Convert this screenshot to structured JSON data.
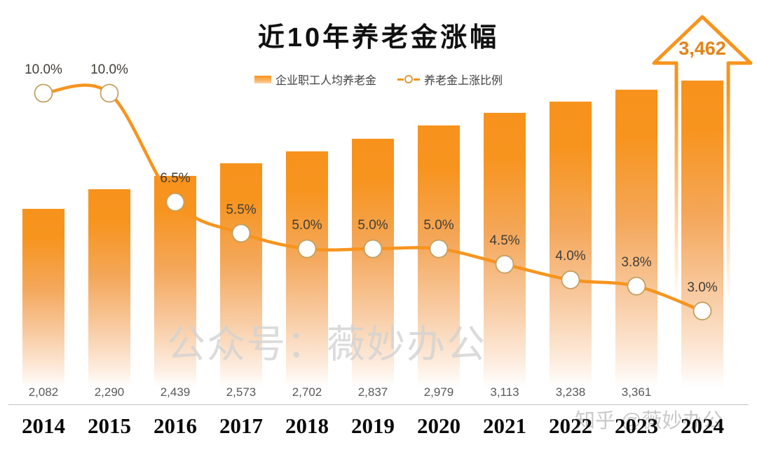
{
  "title": "近10年养老金涨幅",
  "legend": {
    "bar_label": "企业职工人均养老金",
    "line_label": "养老金上涨比例"
  },
  "watermarks": {
    "center": "公众号：薇妙办公",
    "corner": "知乎 @薇妙办公"
  },
  "arrow": {
    "label": "3,462"
  },
  "colors": {
    "orange": "#F7941E",
    "arrow_text": "#E28418",
    "value_label": "#595959",
    "pct_label": "#403E38",
    "year_label": "#0A0A0A",
    "axis_line": "#C4C4C4",
    "marker_stroke": "#C2A060",
    "watermark": "#CCCCCC"
  },
  "chart_data": {
    "type": "bar",
    "title": "近10年养老金涨幅",
    "categories": [
      "2014",
      "2015",
      "2016",
      "2017",
      "2018",
      "2019",
      "2020",
      "2021",
      "2022",
      "2023",
      "2024"
    ],
    "series": [
      {
        "name": "企业职工人均养老金",
        "type": "bar",
        "values": [
          2082,
          2290,
          2439,
          2573,
          2702,
          2837,
          2979,
          3113,
          3238,
          3361,
          3462
        ]
      },
      {
        "name": "养老金上涨比例",
        "type": "line",
        "unit": "%",
        "values": [
          10.0,
          10.0,
          6.5,
          5.5,
          5.0,
          5.0,
          5.0,
          4.5,
          4.0,
          3.8,
          3.0
        ]
      }
    ],
    "bar_value_labels": [
      "2,082",
      "2,290",
      "2,439",
      "2,573",
      "2,702",
      "2,837",
      "2,979",
      "3,113",
      "3,238",
      "3,361",
      null
    ],
    "pct_labels": [
      "10.0%",
      "10.0%",
      "6.5%",
      "5.5%",
      "5.0%",
      "5.0%",
      "5.0%",
      "4.5%",
      "4.0%",
      "3.8%",
      "3.0%"
    ],
    "legend_position": "top",
    "grid": false,
    "annotation": "2024 value 3,462 shown inside an upward arrow above the last bar"
  }
}
